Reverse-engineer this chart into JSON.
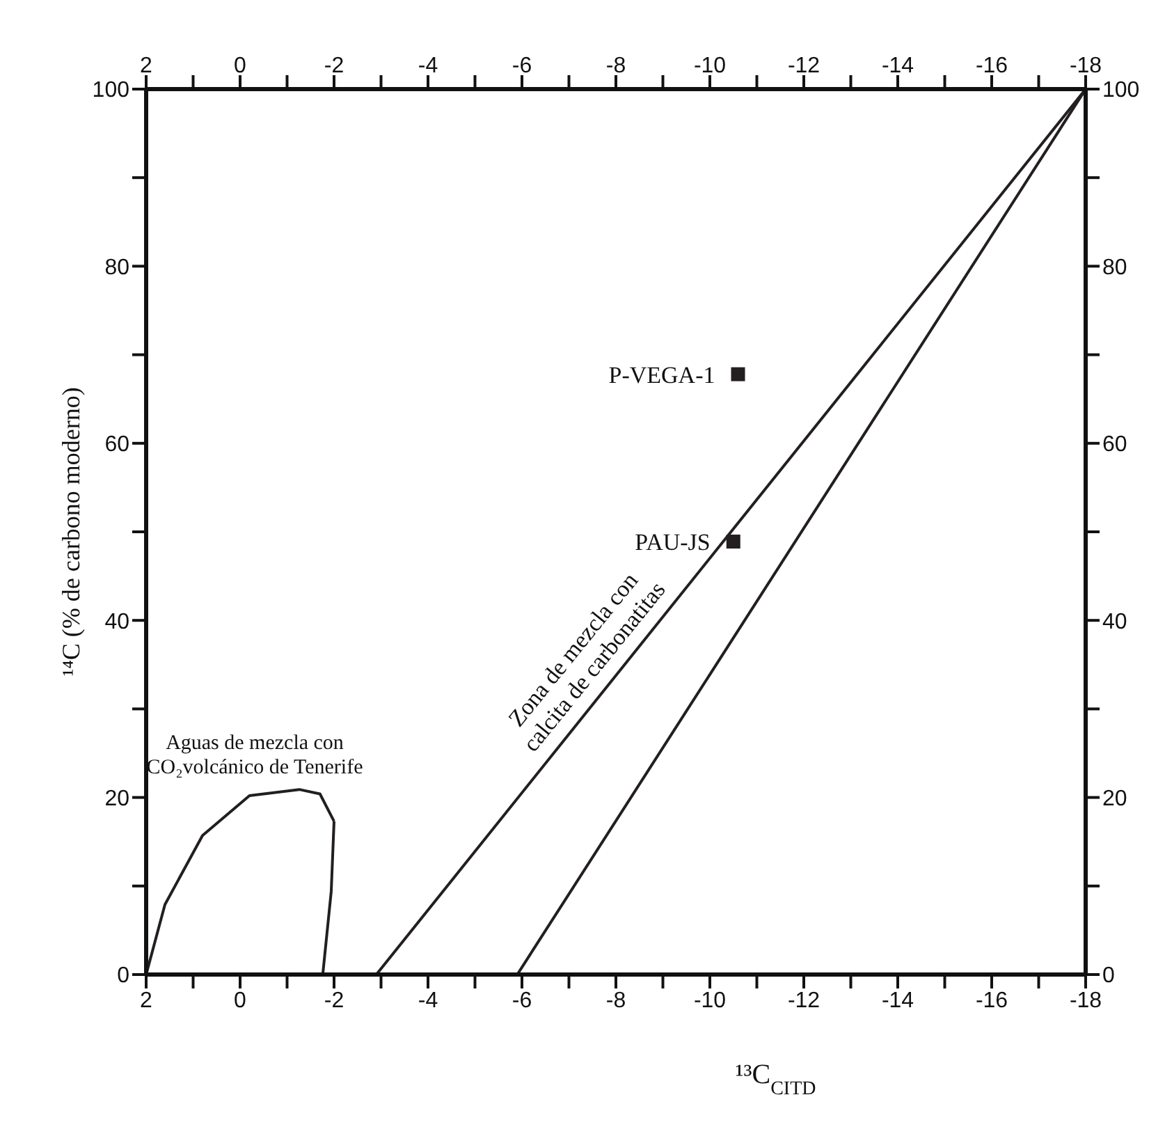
{
  "chart_data": {
    "type": "scatter",
    "xlabel": "¹³C$_{CITD}$",
    "ylabel": "¹⁴C (% de carbono moderno)",
    "xlim": [
      2,
      -18
    ],
    "xticks": [
      2,
      {
        "value": 1,
        "label": null
      },
      0,
      {
        "value": -1,
        "label": null
      },
      -2,
      {
        "value": -3,
        "label": null
      },
      -4,
      {
        "value": -5,
        "label": null
      },
      -6,
      {
        "value": -7,
        "label": null
      },
      -8,
      {
        "value": -9,
        "label": null
      },
      -10,
      {
        "value": -11,
        "label": null
      },
      -12,
      {
        "value": -13,
        "label": null
      },
      -14,
      {
        "value": -15,
        "label": null
      },
      -16,
      {
        "value": -17,
        "label": null
      },
      -18
    ],
    "x2lim": [
      2,
      -18
    ],
    "x2ticks": [
      2,
      {
        "value": 1,
        "label": null
      },
      0,
      {
        "value": -1,
        "label": null
      },
      -2,
      {
        "value": -3,
        "label": null
      },
      -4,
      {
        "value": -5,
        "label": null
      },
      -6,
      {
        "value": -7,
        "label": null
      },
      -8,
      {
        "value": -9,
        "label": null
      },
      -10,
      {
        "value": -11,
        "label": null
      },
      -12,
      {
        "value": -13,
        "label": null
      },
      -14,
      {
        "value": -15,
        "label": null
      },
      -16,
      {
        "value": -17,
        "label": null
      },
      -18
    ],
    "ylim": [
      0,
      100
    ],
    "yticks": [
      0,
      {
        "value": 10,
        "label": null
      },
      20,
      {
        "value": 30,
        "label": null
      },
      40,
      {
        "value": 50,
        "label": null
      },
      60,
      {
        "value": 70,
        "label": null
      },
      80,
      {
        "value": 90,
        "label": null
      },
      100
    ],
    "y2lim": [
      0,
      100
    ],
    "y2ticks": [
      0,
      {
        "value": 10,
        "label": null
      },
      20,
      {
        "value": 30,
        "label": null
      },
      40,
      {
        "value": 50,
        "label": null
      },
      60,
      {
        "value": 70,
        "label": null
      },
      80,
      {
        "value": 90,
        "label": null
      },
      100
    ],
    "grid": false,
    "legend": false,
    "series": [
      {
        "color": "#231f20",
        "marker": "square",
        "x": [
          -10.6,
          -10.5
        ],
        "values": [
          67.8,
          48.9
        ],
        "value_labels": [
          "P-VEGA-1",
          "PAU-JS"
        ]
      },
      {
        "type": "line",
        "color": "#231f20",
        "marker": "none",
        "x": [
          -2.9,
          -18
        ],
        "values": [
          0,
          100
        ]
      },
      {
        "type": "line",
        "color": "#231f20",
        "marker": "none",
        "x": [
          -5.9,
          -18
        ],
        "values": [
          0,
          100
        ]
      },
      {
        "type": "line",
        "color": "#231f20",
        "marker": "none",
        "x": [
          2,
          1.6,
          0.8,
          -0.2,
          -1.26,
          -1.7,
          -2
        ],
        "values": [
          0,
          7.9,
          15.7,
          20.2,
          20.9,
          20.4,
          17.3
        ]
      },
      {
        "type": "line",
        "color": "#231f20",
        "marker": "none",
        "x": [
          -2,
          -1.94,
          -1.76
        ],
        "values": [
          17.3,
          9.4,
          0
        ]
      }
    ],
    "annotations": [
      "Aguas de mezcla con\nCO₂volcánico de Tenerife",
      "Zona de mezcla con\ncalcita de carbonatitas"
    ]
  }
}
